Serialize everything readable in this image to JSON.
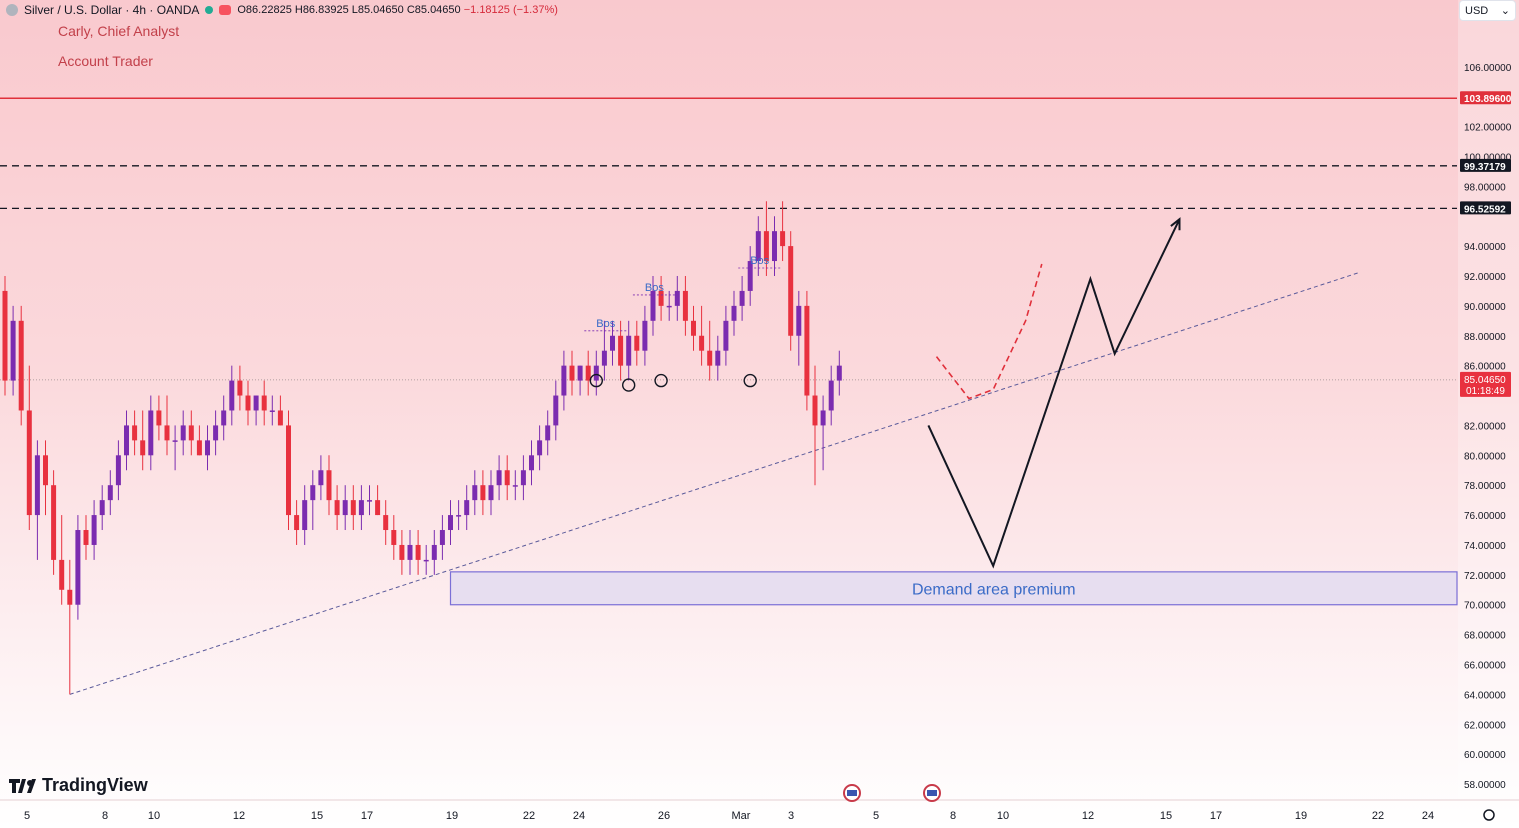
{
  "header": {
    "symbol_title": "Silver / U.S. Dollar · 4h · OANDA",
    "open": "O86.22825",
    "high": "H86.83925",
    "low": "L85.04650",
    "close": "C85.04650",
    "change": "−1.18125 (−1.37%)"
  },
  "notes": {
    "author": "Carly, Chief Analyst",
    "role": "Account Trader"
  },
  "currency_selector": {
    "value": "USD"
  },
  "brand": {
    "name": "TradingView"
  },
  "colors": {
    "up": "#7b2cb0",
    "down": "#e8313f",
    "resistance": "#e0303b",
    "zone_border": "#7b6fd6",
    "zone_fill": "#e7def0"
  },
  "chart_data": {
    "type": "candlestick",
    "symbol": "Silver / U.S. Dollar",
    "interval": "4h",
    "y_range": [
      57,
      110
    ],
    "y_ticks": [
      "106.00000",
      "102.00000",
      "100.00000",
      "98.00000",
      "94.00000",
      "92.00000",
      "90.00000",
      "88.00000",
      "86.00000",
      "82.00000",
      "80.00000",
      "78.00000",
      "76.00000",
      "74.00000",
      "72.00000",
      "70.00000",
      "68.00000",
      "66.00000",
      "64.00000",
      "62.00000",
      "60.00000",
      "58.00000"
    ],
    "x_ticks": [
      "5",
      "8",
      "10",
      "12",
      "15",
      "17",
      "19",
      "22",
      "24",
      "26",
      "Mar",
      "3",
      "5",
      "8",
      "10",
      "12",
      "15",
      "17",
      "19",
      "22",
      "24"
    ],
    "price_labels": [
      {
        "text": "103.89600",
        "value": 103.896,
        "color": "#e0303b"
      },
      {
        "text": "99.37179",
        "value": 99.37179,
        "color": "#131722"
      },
      {
        "text": "96.52592",
        "value": 96.52592,
        "color": "#131722"
      }
    ],
    "current_price": {
      "text": "85.04650",
      "countdown": "01:18:49",
      "value": 85.0465
    },
    "levels": [
      {
        "value": 103.896,
        "style": "solid",
        "color": "#e0303b"
      },
      {
        "value": 99.37179,
        "style": "dashed",
        "color": "#131722"
      },
      {
        "value": 96.52592,
        "style": "dashed",
        "color": "#131722"
      }
    ],
    "candles": [
      [
        91,
        92,
        84,
        85
      ],
      [
        85,
        90,
        84,
        89
      ],
      [
        89,
        90,
        82,
        83
      ],
      [
        83,
        86,
        75,
        76
      ],
      [
        76,
        81,
        73,
        80
      ],
      [
        80,
        81,
        76,
        78
      ],
      [
        78,
        79,
        72,
        73
      ],
      [
        73,
        76,
        70,
        71
      ],
      [
        71,
        73,
        64,
        70
      ],
      [
        70,
        76,
        69,
        75
      ],
      [
        75,
        76,
        73,
        74
      ],
      [
        74,
        77,
        73,
        76
      ],
      [
        76,
        78,
        75,
        77
      ],
      [
        77,
        79,
        76,
        78
      ],
      [
        78,
        81,
        77,
        80
      ],
      [
        80,
        83,
        79,
        82
      ],
      [
        82,
        83,
        80,
        81
      ],
      [
        81,
        83,
        79,
        80
      ],
      [
        80,
        84,
        79,
        83
      ],
      [
        83,
        84,
        81,
        82
      ],
      [
        82,
        84,
        80,
        81
      ],
      [
        81,
        82,
        79,
        81
      ],
      [
        81,
        83,
        80,
        82
      ],
      [
        82,
        83,
        80,
        81
      ],
      [
        81,
        82,
        80,
        80
      ],
      [
        80,
        82,
        79,
        81
      ],
      [
        81,
        83,
        80,
        82
      ],
      [
        82,
        84,
        81,
        83
      ],
      [
        83,
        86,
        82,
        85
      ],
      [
        85,
        86,
        83,
        84
      ],
      [
        84,
        85,
        82,
        83
      ],
      [
        83,
        84,
        82,
        84
      ],
      [
        84,
        85,
        82,
        83
      ],
      [
        83,
        84,
        82,
        83
      ],
      [
        83,
        84,
        82,
        82
      ],
      [
        82,
        83,
        75,
        76
      ],
      [
        76,
        77,
        74,
        75
      ],
      [
        75,
        78,
        74,
        77
      ],
      [
        77,
        79,
        75,
        78
      ],
      [
        78,
        80,
        77,
        79
      ],
      [
        79,
        80,
        76,
        77
      ],
      [
        77,
        78,
        75,
        76
      ],
      [
        76,
        78,
        75,
        77
      ],
      [
        77,
        78,
        75,
        76
      ],
      [
        76,
        78,
        75,
        77
      ],
      [
        77,
        78,
        76,
        77
      ],
      [
        77,
        78,
        76,
        76
      ],
      [
        76,
        77,
        74,
        75
      ],
      [
        75,
        76,
        73,
        74
      ],
      [
        74,
        75,
        72,
        73
      ],
      [
        73,
        75,
        72,
        74
      ],
      [
        74,
        75,
        72,
        73
      ],
      [
        73,
        74,
        72,
        73
      ],
      [
        73,
        75,
        72,
        74
      ],
      [
        74,
        76,
        73,
        75
      ],
      [
        75,
        77,
        74,
        76
      ],
      [
        76,
        77,
        75,
        76
      ],
      [
        76,
        78,
        75,
        77
      ],
      [
        77,
        79,
        76,
        78
      ],
      [
        78,
        79,
        76,
        77
      ],
      [
        77,
        79,
        76,
        78
      ],
      [
        78,
        80,
        77,
        79
      ],
      [
        79,
        80,
        77,
        78
      ],
      [
        78,
        79,
        77,
        78
      ],
      [
        78,
        80,
        77,
        79
      ],
      [
        79,
        81,
        78,
        80
      ],
      [
        80,
        82,
        79,
        81
      ],
      [
        81,
        83,
        80,
        82
      ],
      [
        82,
        85,
        81,
        84
      ],
      [
        84,
        87,
        83,
        86
      ],
      [
        86,
        87,
        84,
        85
      ],
      [
        85,
        86,
        84,
        86
      ],
      [
        86,
        87,
        84,
        85
      ],
      [
        85,
        87,
        84,
        86
      ],
      [
        86,
        89,
        85,
        87
      ],
      [
        87,
        89,
        86,
        88
      ],
      [
        88,
        89,
        85,
        86
      ],
      [
        86,
        89,
        85,
        88
      ],
      [
        88,
        89,
        86,
        87
      ],
      [
        87,
        90,
        86,
        89
      ],
      [
        89,
        92,
        88,
        91
      ],
      [
        91,
        92,
        89,
        90
      ],
      [
        90,
        91,
        89,
        90
      ],
      [
        90,
        92,
        89,
        91
      ],
      [
        91,
        92,
        88,
        89
      ],
      [
        89,
        90,
        87,
        88
      ],
      [
        88,
        90,
        86,
        87
      ],
      [
        87,
        89,
        85,
        86
      ],
      [
        86,
        88,
        85,
        87
      ],
      [
        87,
        90,
        86,
        89
      ],
      [
        89,
        91,
        88,
        90
      ],
      [
        90,
        92,
        89,
        91
      ],
      [
        91,
        94,
        90,
        93
      ],
      [
        93,
        96,
        92,
        95
      ],
      [
        95,
        97,
        92,
        93
      ],
      [
        93,
        96,
        92,
        95
      ],
      [
        95,
        97,
        93,
        94
      ],
      [
        94,
        95,
        87,
        88
      ],
      [
        88,
        91,
        86,
        90
      ],
      [
        90,
        91,
        83,
        84
      ],
      [
        84,
        86,
        78,
        82
      ],
      [
        82,
        84,
        79,
        83
      ],
      [
        83,
        86,
        82,
        85
      ],
      [
        85,
        87,
        84,
        86
      ]
    ],
    "trendline": {
      "from": {
        "index": 8,
        "value": 64
      },
      "to": {
        "index": 167,
        "value": 92.2
      }
    },
    "zone": {
      "label": "Demand area premium",
      "top": 72.2,
      "bottom": 70.0,
      "from_index": 55
    },
    "bos_labels": [
      {
        "text": "Bos",
        "index": 73,
        "value": 88.6
      },
      {
        "text": "Bos",
        "index": 79,
        "value": 91.0
      },
      {
        "text": "Bos",
        "index": 92,
        "value": 92.8
      }
    ],
    "circles": [
      {
        "index": 73,
        "value": 85.0
      },
      {
        "index": 77,
        "value": 84.7
      },
      {
        "index": 81,
        "value": 85.0
      },
      {
        "index": 92,
        "value": 85.0
      }
    ],
    "projection_solid": [
      {
        "index": 114,
        "value": 82.0
      },
      {
        "index": 122,
        "value": 72.6
      },
      {
        "index": 134,
        "value": 91.8
      },
      {
        "index": 137,
        "value": 86.8
      },
      {
        "index": 145,
        "value": 95.8
      }
    ],
    "projection_dashed": [
      {
        "index": 115,
        "value": 86.6
      },
      {
        "index": 119,
        "value": 83.8
      },
      {
        "index": 122,
        "value": 84.4
      },
      {
        "index": 126,
        "value": 89.0
      },
      {
        "index": 128,
        "value": 92.8
      }
    ]
  }
}
